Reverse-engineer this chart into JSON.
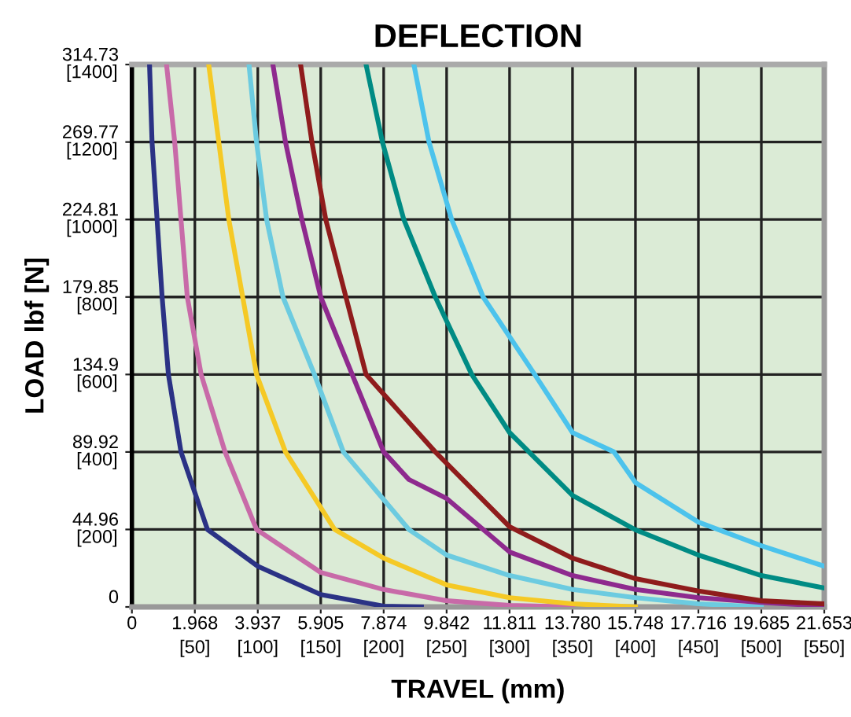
{
  "chart_data": {
    "type": "line",
    "title": "DEFLECTION",
    "xlabel": "TRAVEL (mm)",
    "y2label": "LOAD lbf [N]",
    "xlim": [
      0,
      550
    ],
    "ylim": [
      0,
      1400
    ],
    "xticks": [
      {
        "value": 0,
        "label": null
      },
      {
        "value": 50,
        "label": "[50]"
      },
      {
        "value": 100,
        "label": "[100]"
      },
      {
        "value": 150,
        "label": "[150]"
      },
      {
        "value": 200,
        "label": "[200]"
      },
      {
        "value": 250,
        "label": "[250]"
      },
      {
        "value": 300,
        "label": "[300]"
      },
      {
        "value": 350,
        "label": "[350]"
      },
      {
        "value": 400,
        "label": "[400]"
      },
      {
        "value": 450,
        "label": "[450]"
      },
      {
        "value": 500,
        "label": "[500]"
      },
      {
        "value": 550,
        "label": "[550]"
      }
    ],
    "yticks": [
      {
        "value": 0,
        "label": null
      },
      {
        "value": 200,
        "label": "[200]"
      },
      {
        "value": 400,
        "label": "[400]"
      },
      {
        "value": 600,
        "label": "[600]"
      },
      {
        "value": 800,
        "label": "[800]"
      },
      {
        "value": 1000,
        "label": "[1000]"
      },
      {
        "value": 1200,
        "label": "[1200]"
      },
      {
        "value": 1400,
        "label": "[1400]"
      }
    ],
    "x2lim": [
      0,
      21.653
    ],
    "x2ticks": [
      0,
      1.968,
      3.937,
      5.905,
      7.874,
      9.842,
      11.811,
      {
        "value": 13.78,
        "label": "13.780"
      },
      15.748,
      17.716,
      19.685,
      21.653
    ],
    "y2lim": [
      0,
      314.73
    ],
    "y2ticks": [
      0,
      44.96,
      89.92,
      134.9,
      179.85,
      224.81,
      269.77,
      314.73
    ],
    "grid": true,
    "marker": "none",
    "line_style": "solid",
    "legend": false,
    "series": [
      {
        "color": "#2b3285",
        "x": [
          14,
          16,
          20,
          24,
          29,
          39,
          60,
          100,
          150,
          200,
          230
        ],
        "values": [
          1400,
          1200,
          1000,
          800,
          600,
          400,
          200,
          105,
          32,
          2,
          0
        ]
      },
      {
        "color": "#c86aa8",
        "x": [
          27.5,
          34,
          39,
          44,
          55,
          74,
          99,
          150,
          200,
          250,
          300,
          350
        ],
        "values": [
          1400,
          1200,
          1000,
          800,
          600,
          400,
          200,
          89,
          45,
          16,
          4,
          0
        ]
      },
      {
        "color": "#f5c925",
        "x": [
          61,
          69,
          77,
          88,
          99,
          122,
          161,
          200,
          250,
          300,
          350,
          400
        ],
        "values": [
          1400,
          1200,
          1000,
          800,
          600,
          400,
          200,
          126,
          57,
          24,
          8,
          0
        ]
      },
      {
        "color": "#6ccbe0",
        "x": [
          93,
          99,
          107,
          120,
          145,
          168,
          220,
          250,
          300,
          350,
          400,
          450,
          500
        ],
        "values": [
          1400,
          1200,
          1000,
          800,
          600,
          400,
          200,
          134,
          81,
          45,
          24,
          8,
          0
        ]
      },
      {
        "color": "#8e2a8e",
        "x": [
          112,
          122,
          135,
          150,
          175,
          200,
          220,
          250,
          300,
          350,
          400,
          450,
          500,
          550
        ],
        "values": [
          1400,
          1200,
          1000,
          800,
          600,
          400,
          329,
          280,
          142,
          81,
          45,
          24,
          12,
          2
        ]
      },
      {
        "color": "#8f1c1c",
        "x": [
          134,
          143,
          154,
          170,
          186,
          241,
          300,
          350,
          400,
          450,
          500,
          550
        ],
        "values": [
          1400,
          1200,
          1000,
          800,
          600,
          400,
          207,
          126,
          73,
          41,
          16,
          8
        ]
      },
      {
        "color": "#008b84",
        "x": [
          186,
          199,
          216,
          241,
          270,
          300,
          350,
          400,
          450,
          500,
          550
        ],
        "values": [
          1400,
          1200,
          1000,
          800,
          600,
          450,
          288,
          199,
          134,
          81,
          49
        ]
      },
      {
        "color": "#4cc3ec",
        "x": [
          224,
          236,
          254,
          279,
          320,
          350,
          383,
          400,
          450,
          500,
          550
        ],
        "values": [
          1400,
          1200,
          1000,
          800,
          600,
          450,
          400,
          321,
          219,
          158,
          105
        ]
      }
    ]
  }
}
